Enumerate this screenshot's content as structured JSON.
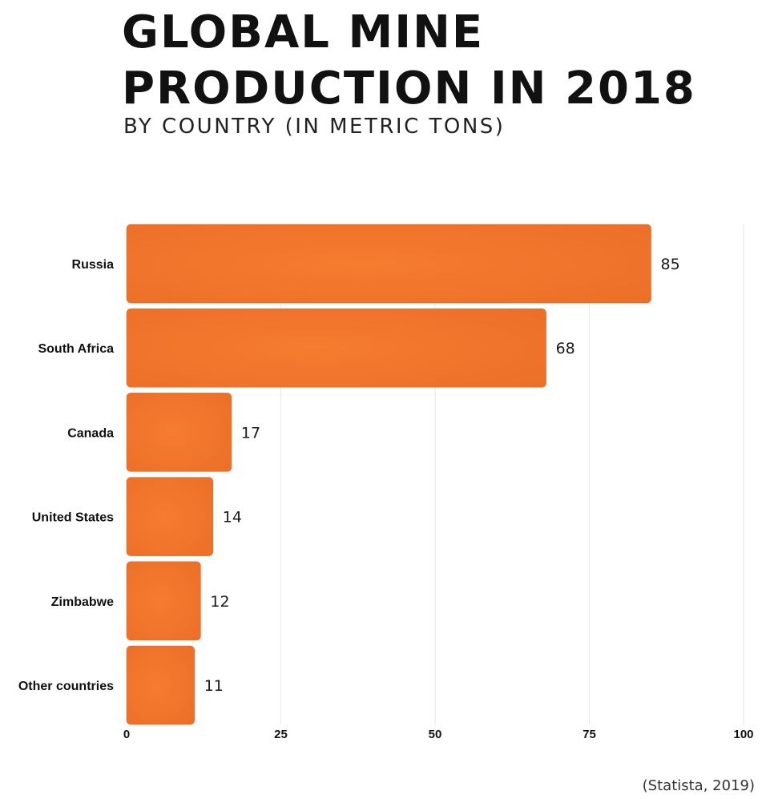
{
  "header": {
    "title_line1": "GLOBAL MINE",
    "title_line2": "PRODUCTION IN 2018",
    "subtitle": "BY COUNTRY (IN METRIC TONS)"
  },
  "footer": {
    "source": "(Statista, 2019)"
  },
  "colors": {
    "bar": "#F2762E",
    "bar_edge": "#E0651F",
    "grid": "#E6E6E6",
    "text": "#111111"
  },
  "chart_data": {
    "type": "bar",
    "orientation": "horizontal",
    "title": "GLOBAL MINE PRODUCTION IN 2018",
    "subtitle": "BY COUNTRY (IN METRIC TONS)",
    "categories": [
      "Russia",
      "South Africa",
      "Canada",
      "United States",
      "Zimbabwe",
      "Other countries"
    ],
    "values": [
      85,
      68,
      17,
      14,
      12,
      11
    ],
    "data_labels": [
      "85",
      "68",
      "17",
      "14",
      "12",
      "11"
    ],
    "xlim": [
      0,
      100
    ],
    "x_ticks": [
      "0",
      "25",
      "50",
      "75",
      "100"
    ],
    "x_tick_values": [
      0,
      25,
      50,
      75,
      100
    ],
    "xlabel": "",
    "ylabel": "",
    "grid": "vertical",
    "legend": "none"
  }
}
